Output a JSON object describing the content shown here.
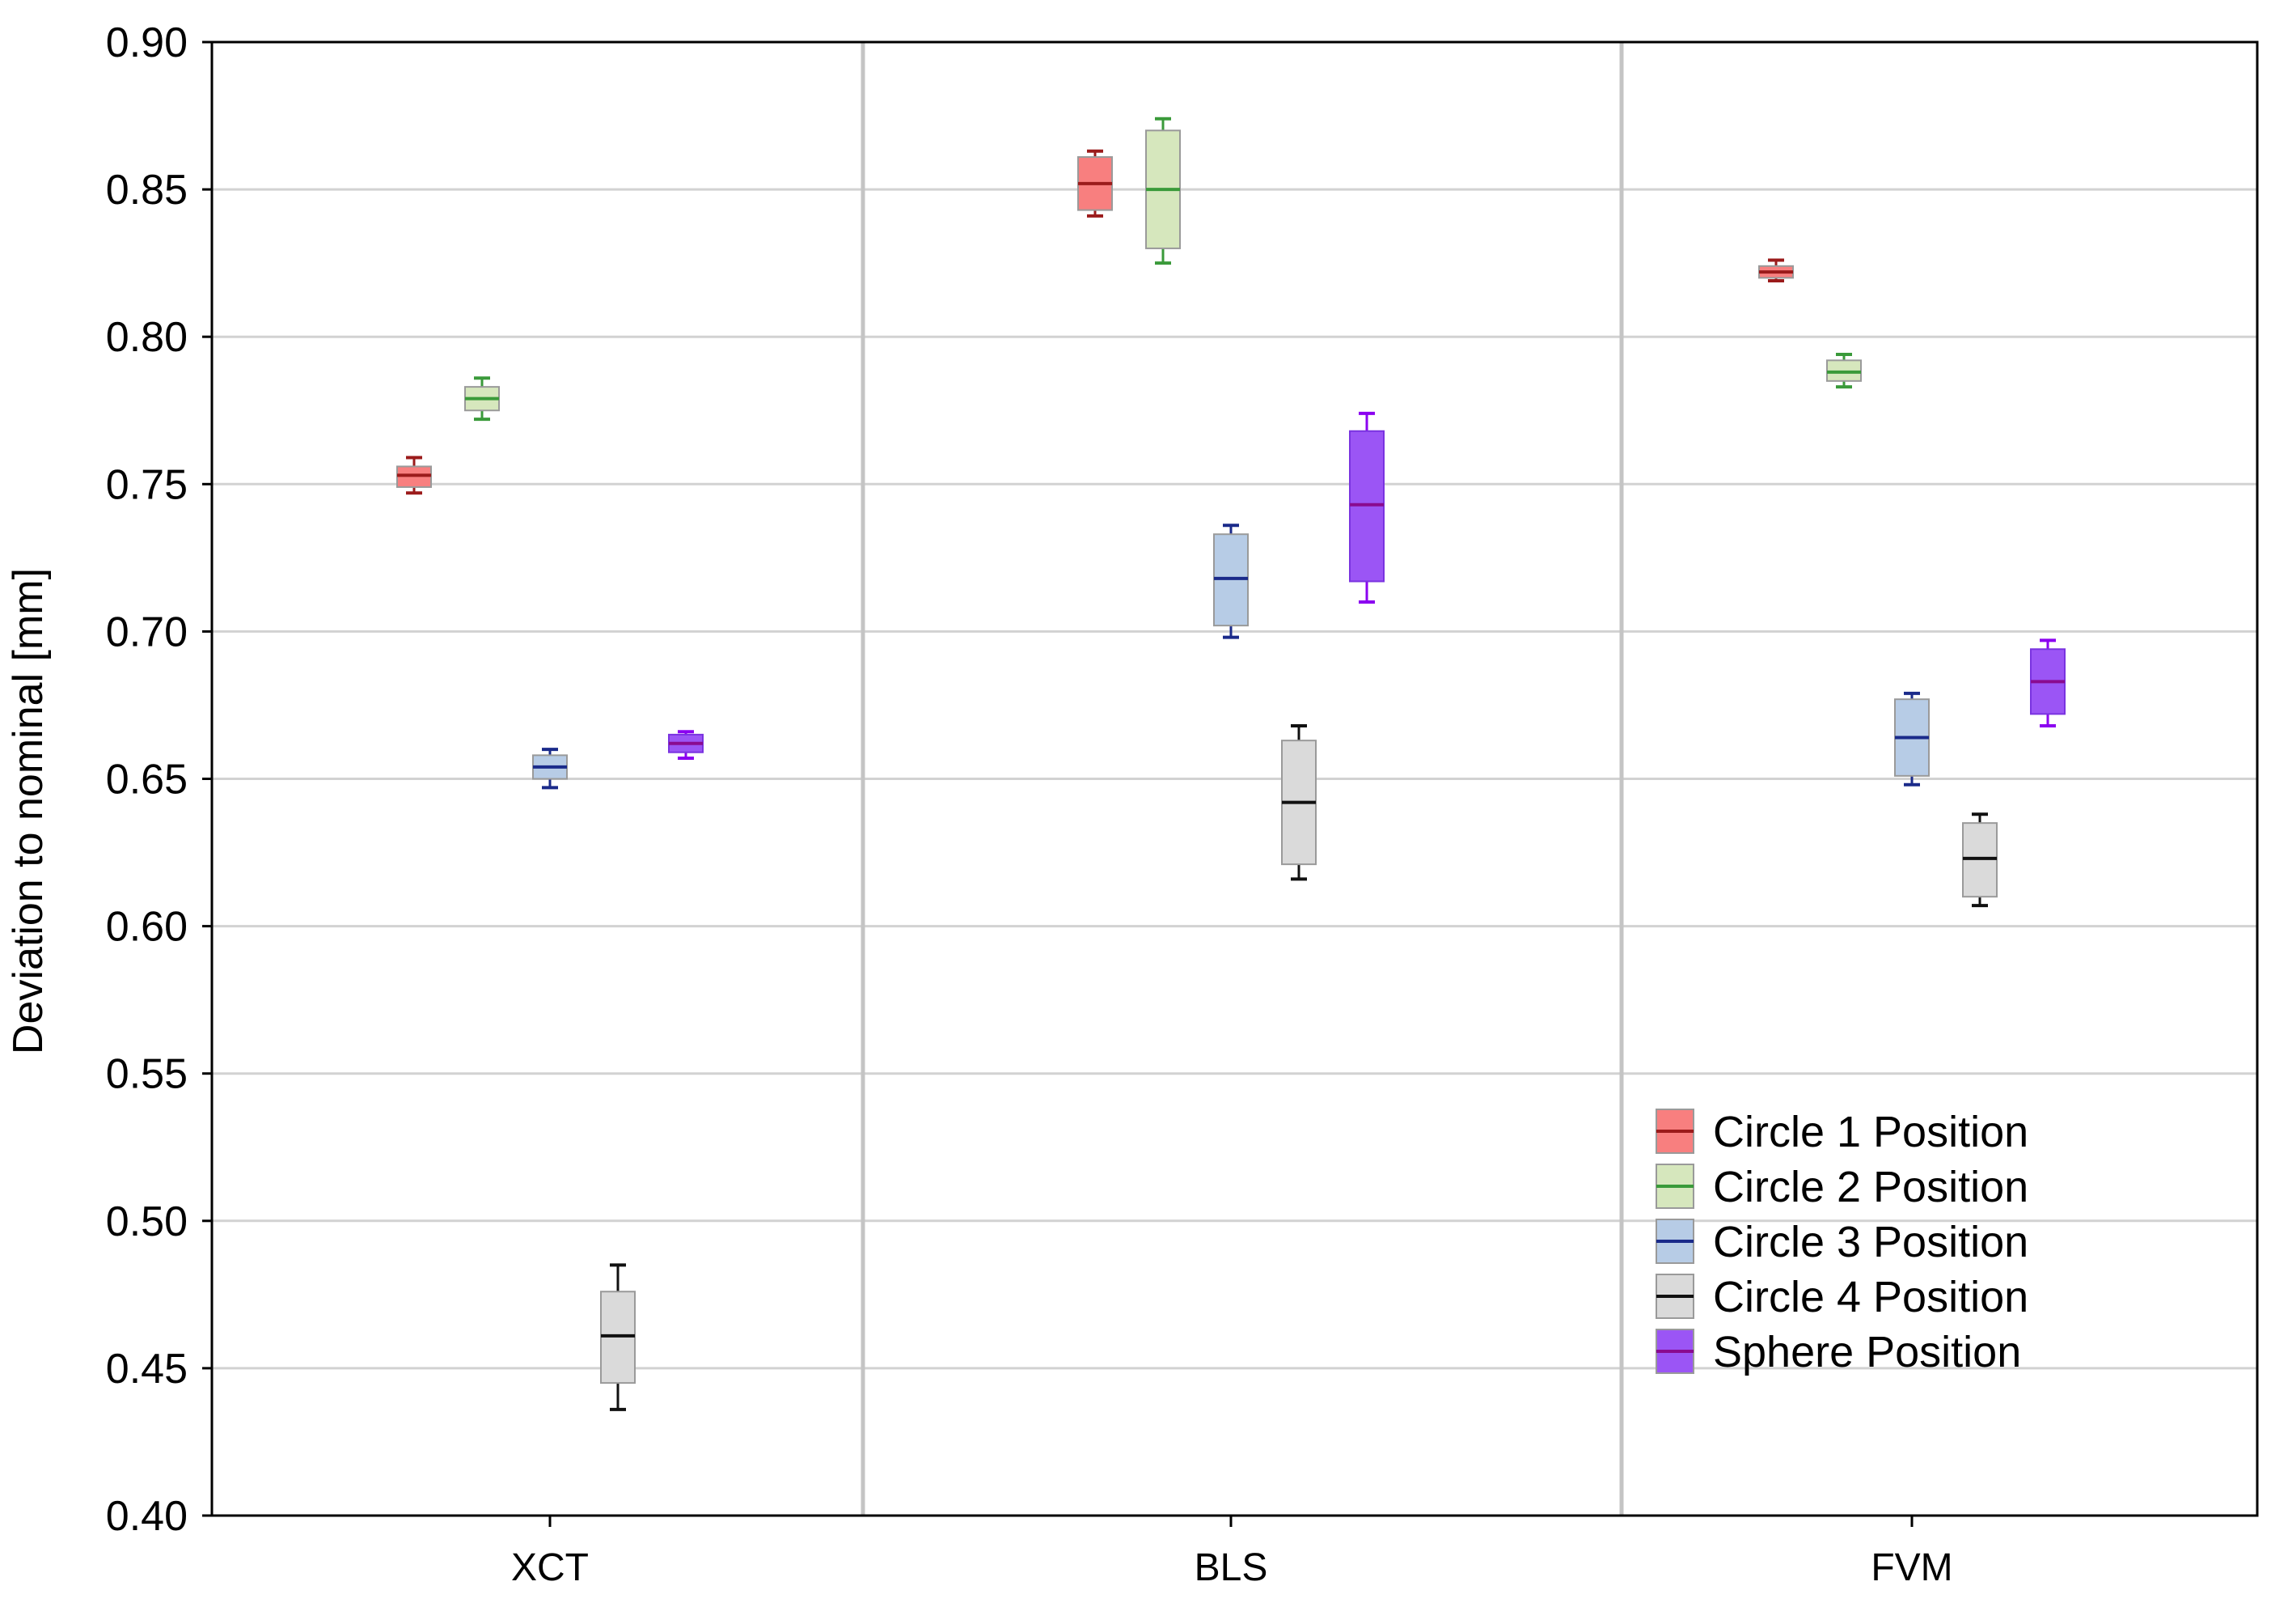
{
  "chart_data": {
    "type": "box",
    "title": "",
    "xlabel": "",
    "ylabel": "Deviation to nominal [mm]",
    "ylim": [
      0.4,
      0.9
    ],
    "yticks": [
      "0.40",
      "0.45",
      "0.50",
      "0.55",
      "0.60",
      "0.65",
      "0.70",
      "0.75",
      "0.80",
      "0.85",
      "0.90"
    ],
    "categories": [
      "XCT",
      "BLS",
      "FVM"
    ],
    "grid": true,
    "legend_position": "bottom-right",
    "series": [
      {
        "name": "Circle 1 Position",
        "fill": "#f87f7f",
        "line": "#9b1b1b",
        "boxes": [
          {
            "whisker_low": 0.747,
            "q1": 0.749,
            "median": 0.753,
            "q3": 0.756,
            "whisker_high": 0.759
          },
          {
            "whisker_low": 0.841,
            "q1": 0.843,
            "median": 0.852,
            "q3": 0.861,
            "whisker_high": 0.863
          },
          {
            "whisker_low": 0.819,
            "q1": 0.82,
            "median": 0.822,
            "q3": 0.824,
            "whisker_high": 0.826
          }
        ]
      },
      {
        "name": "Circle 2 Position",
        "fill": "#d6e7bd",
        "line": "#3a9a3a",
        "boxes": [
          {
            "whisker_low": 0.772,
            "q1": 0.775,
            "median": 0.779,
            "q3": 0.783,
            "whisker_high": 0.786
          },
          {
            "whisker_low": 0.825,
            "q1": 0.83,
            "median": 0.85,
            "q3": 0.87,
            "whisker_high": 0.874
          },
          {
            "whisker_low": 0.783,
            "q1": 0.785,
            "median": 0.788,
            "q3": 0.792,
            "whisker_high": 0.794
          }
        ]
      },
      {
        "name": "Circle 3 Position",
        "fill": "#b7cce6",
        "line": "#1a2a8a",
        "boxes": [
          {
            "whisker_low": 0.647,
            "q1": 0.65,
            "median": 0.654,
            "q3": 0.658,
            "whisker_high": 0.66
          },
          {
            "whisker_low": 0.698,
            "q1": 0.702,
            "median": 0.718,
            "q3": 0.733,
            "whisker_high": 0.736
          },
          {
            "whisker_low": 0.648,
            "q1": 0.651,
            "median": 0.664,
            "q3": 0.677,
            "whisker_high": 0.679
          }
        ]
      },
      {
        "name": "Circle 4 Position",
        "fill": "#dadada",
        "line": "#111111",
        "boxes": [
          {
            "whisker_low": 0.436,
            "q1": 0.445,
            "median": 0.461,
            "q3": 0.476,
            "whisker_high": 0.485
          },
          {
            "whisker_low": 0.616,
            "q1": 0.621,
            "median": 0.642,
            "q3": 0.663,
            "whisker_high": 0.668
          },
          {
            "whisker_low": 0.607,
            "q1": 0.61,
            "median": 0.623,
            "q3": 0.635,
            "whisker_high": 0.638
          }
        ]
      },
      {
        "name": "Sphere Position",
        "fill": "#9b55f5",
        "line": "#8a0b90",
        "whisker": "#8b00f0",
        "boxes": [
          {
            "whisker_low": 0.657,
            "q1": 0.659,
            "median": 0.662,
            "q3": 0.665,
            "whisker_high": 0.666
          },
          {
            "whisker_low": 0.71,
            "q1": 0.717,
            "median": 0.743,
            "q3": 0.768,
            "whisker_high": 0.774
          },
          {
            "whisker_low": 0.668,
            "q1": 0.672,
            "median": 0.683,
            "q3": 0.694,
            "whisker_high": 0.697
          }
        ]
      }
    ]
  }
}
